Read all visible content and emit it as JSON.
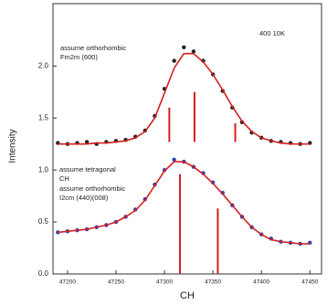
{
  "chart_data": {
    "type": "scatter",
    "x_label": "CH",
    "y_label": "Intensity",
    "annotations": [
      "assume orthorhombic",
      "Fm2m (600)",
      "400   10K",
      "assume tetragonal",
      "CH",
      "assume orthorhombic",
      "I2cm (440)(008)"
    ],
    "x": [
      47190,
      47200,
      47210,
      47220,
      47230,
      47240,
      47250,
      47260,
      47270,
      47280,
      47290,
      47300,
      47310,
      47320,
      47330,
      47340,
      47350,
      47360,
      47370,
      47380,
      47390,
      47400,
      47410,
      47420,
      47430,
      47440,
      47450
    ],
    "series": [
      {
        "color": "#222222",
        "values": [
          1.26,
          1.25,
          1.26,
          1.27,
          1.25,
          1.27,
          1.28,
          1.29,
          1.32,
          1.38,
          1.52,
          1.78,
          2.05,
          2.18,
          2.14,
          2.05,
          1.92,
          1.76,
          1.6,
          1.46,
          1.36,
          1.31,
          1.28,
          1.27,
          1.26,
          1.25,
          1.26
        ]
      },
      {
        "color": "#d42020",
        "line": true,
        "values": [
          1.25,
          1.25,
          1.25,
          1.25,
          1.26,
          1.26,
          1.27,
          1.28,
          1.31,
          1.37,
          1.5,
          1.74,
          1.98,
          2.12,
          2.12,
          2.04,
          1.92,
          1.77,
          1.61,
          1.47,
          1.37,
          1.31,
          1.28,
          1.26,
          1.25,
          1.25,
          1.25
        ]
      },
      {
        "color": "#2a3fb8",
        "values": [
          0.4,
          0.41,
          0.42,
          0.43,
          0.45,
          0.47,
          0.5,
          0.55,
          0.62,
          0.72,
          0.86,
          1.0,
          1.1,
          1.08,
          1.03,
          0.97,
          0.88,
          0.78,
          0.66,
          0.55,
          0.45,
          0.38,
          0.34,
          0.31,
          0.3,
          0.29,
          0.3
        ]
      },
      {
        "color": "#d42020",
        "line": true,
        "values": [
          0.4,
          0.41,
          0.42,
          0.43,
          0.45,
          0.47,
          0.5,
          0.55,
          0.61,
          0.71,
          0.85,
          0.99,
          1.08,
          1.08,
          1.03,
          0.96,
          0.87,
          0.77,
          0.66,
          0.55,
          0.45,
          0.38,
          0.33,
          0.31,
          0.3,
          0.29,
          0.29
        ]
      }
    ],
    "sticks": [
      {
        "x": 47305,
        "from": 1.27,
        "to": 1.6
      },
      {
        "x": 47331,
        "from": 1.27,
        "to": 1.75
      },
      {
        "x": 47373,
        "from": 1.27,
        "to": 1.45
      },
      {
        "x": 47316,
        "from": 0,
        "to": 0.96
      },
      {
        "x": 47355,
        "from": 0,
        "to": 0.63
      }
    ],
    "stick_color": "#d42020",
    "xlim": [
      47185,
      47462
    ],
    "ylim": [
      0,
      2.6
    ],
    "xticks": [
      47200,
      47250,
      47300,
      47350,
      47400,
      47450
    ],
    "yticks": [
      {
        "value": 0,
        "label": "0.0"
      },
      0.5,
      {
        "value": 1,
        "label": "1.0"
      },
      1.5,
      {
        "value": 2,
        "label": "2.0"
      }
    ]
  }
}
